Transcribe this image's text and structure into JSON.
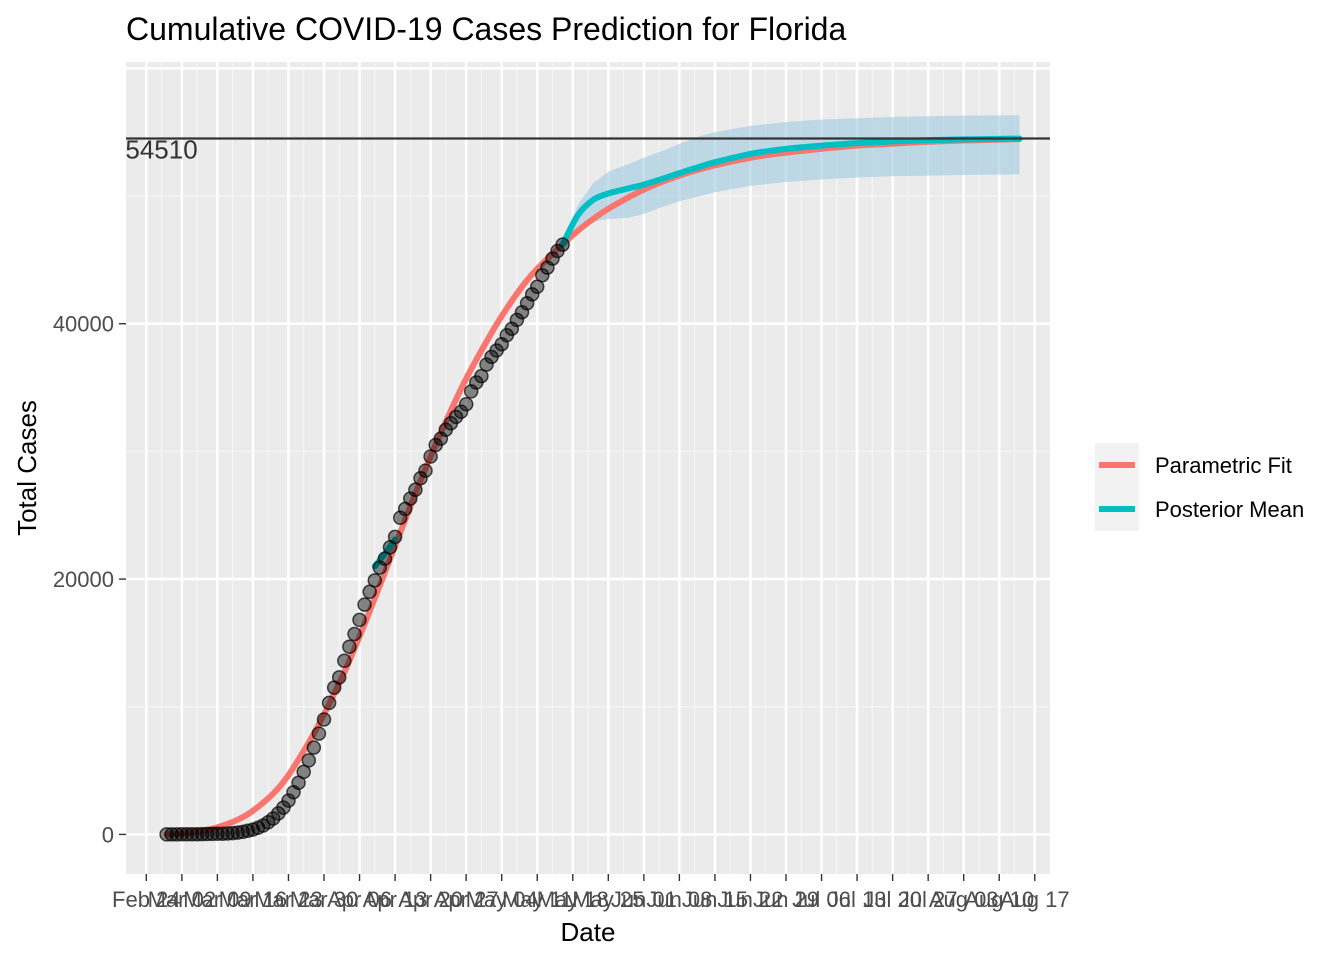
{
  "chart_data": {
    "type": "line",
    "title": "Cumulative COVID-19 Cases Prediction for Florida",
    "xlabel": "Date",
    "ylabel": "Total Cases",
    "x_range": [
      "2020-02-20",
      "2020-08-20"
    ],
    "ylim": [
      -3100,
      60500
    ],
    "y_ticks": [
      0,
      20000,
      40000
    ],
    "x_ticks": [
      {
        "date": "2020-02-24",
        "label": "Feb 24"
      },
      {
        "date": "2020-03-02",
        "label": "Mar 02"
      },
      {
        "date": "2020-03-09",
        "label": "Mar 09"
      },
      {
        "date": "2020-03-16",
        "label": "Mar 16"
      },
      {
        "date": "2020-03-23",
        "label": "Mar 23"
      },
      {
        "date": "2020-03-30",
        "label": "Mar 30"
      },
      {
        "date": "2020-04-06",
        "label": "Apr 06"
      },
      {
        "date": "2020-04-13",
        "label": "Apr 13"
      },
      {
        "date": "2020-04-20",
        "label": "Apr 20"
      },
      {
        "date": "2020-04-27",
        "label": "Apr 27"
      },
      {
        "date": "2020-05-04",
        "label": "May 04"
      },
      {
        "date": "2020-05-11",
        "label": "May 11"
      },
      {
        "date": "2020-05-18",
        "label": "May 18"
      },
      {
        "date": "2020-05-25",
        "label": "May 25"
      },
      {
        "date": "2020-06-01",
        "label": "Jun 01"
      },
      {
        "date": "2020-06-08",
        "label": "Jun 08"
      },
      {
        "date": "2020-06-15",
        "label": "Jun 15"
      },
      {
        "date": "2020-06-22",
        "label": "Jun 22"
      },
      {
        "date": "2020-06-29",
        "label": "Jun 29"
      },
      {
        "date": "2020-07-06",
        "label": "Jul 06"
      },
      {
        "date": "2020-07-13",
        "label": "Jul 13"
      },
      {
        "date": "2020-07-20",
        "label": "Jul 20"
      },
      {
        "date": "2020-07-27",
        "label": "Jul 27"
      },
      {
        "date": "2020-08-03",
        "label": "Aug 03"
      },
      {
        "date": "2020-08-10",
        "label": "Aug 10"
      },
      {
        "date": "2020-08-17",
        "label": "Aug 17"
      }
    ],
    "hline": {
      "value": 54510,
      "label": "54510",
      "label_date": "2020-02-27"
    },
    "grid": true,
    "legend": {
      "position": "right",
      "entries": [
        {
          "name": "Parametric Fit",
          "color": "#F8766D"
        },
        {
          "name": "Posterior Mean",
          "color": "#00BFC4"
        }
      ]
    },
    "observed": {
      "color": "#000000",
      "points": [
        [
          "2020-02-28",
          0
        ],
        [
          "2020-02-29",
          2
        ],
        [
          "2020-03-01",
          5
        ],
        [
          "2020-03-02",
          8
        ],
        [
          "2020-03-03",
          10
        ],
        [
          "2020-03-04",
          13
        ],
        [
          "2020-03-05",
          18
        ],
        [
          "2020-03-06",
          25
        ],
        [
          "2020-03-07",
          32
        ],
        [
          "2020-03-08",
          40
        ],
        [
          "2020-03-09",
          50
        ],
        [
          "2020-03-10",
          60
        ],
        [
          "2020-03-11",
          75
        ],
        [
          "2020-03-12",
          100
        ],
        [
          "2020-03-13",
          140
        ],
        [
          "2020-03-14",
          200
        ],
        [
          "2020-03-15",
          280
        ],
        [
          "2020-03-16",
          380
        ],
        [
          "2020-03-17",
          520
        ],
        [
          "2020-03-18",
          700
        ],
        [
          "2020-03-19",
          950
        ],
        [
          "2020-03-20",
          1250
        ],
        [
          "2020-03-21",
          1650
        ],
        [
          "2020-03-22",
          2100
        ],
        [
          "2020-03-23",
          2650
        ],
        [
          "2020-03-24",
          3300
        ],
        [
          "2020-03-25",
          4050
        ],
        [
          "2020-03-26",
          4900
        ],
        [
          "2020-03-27",
          5800
        ],
        [
          "2020-03-28",
          6800
        ],
        [
          "2020-03-29",
          7900
        ],
        [
          "2020-03-30",
          9000
        ],
        [
          "2020-03-31",
          10300
        ],
        [
          "2020-04-01",
          11500
        ],
        [
          "2020-04-02",
          12300
        ],
        [
          "2020-04-03",
          13600
        ],
        [
          "2020-04-04",
          14700
        ],
        [
          "2020-04-05",
          15700
        ],
        [
          "2020-04-06",
          16800
        ],
        [
          "2020-04-07",
          18000
        ],
        [
          "2020-04-08",
          19000
        ],
        [
          "2020-04-09",
          19900
        ],
        [
          "2020-04-10",
          20900
        ],
        [
          "2020-04-11",
          21600
        ],
        [
          "2020-04-12",
          22500
        ],
        [
          "2020-04-13",
          23300
        ],
        [
          "2020-04-14",
          24800
        ],
        [
          "2020-04-15",
          25500
        ],
        [
          "2020-04-16",
          26300
        ],
        [
          "2020-04-17",
          27000
        ],
        [
          "2020-04-18",
          27900
        ],
        [
          "2020-04-19",
          28500
        ],
        [
          "2020-04-20",
          29600
        ],
        [
          "2020-04-21",
          30500
        ],
        [
          "2020-04-22",
          31000
        ],
        [
          "2020-04-23",
          31700
        ],
        [
          "2020-04-24",
          32200
        ],
        [
          "2020-04-25",
          32700
        ],
        [
          "2020-04-26",
          33100
        ],
        [
          "2020-04-27",
          33700
        ],
        [
          "2020-04-28",
          34700
        ],
        [
          "2020-04-29",
          35400
        ],
        [
          "2020-04-30",
          35900
        ],
        [
          "2020-05-01",
          36800
        ],
        [
          "2020-05-02",
          37400
        ],
        [
          "2020-05-03",
          37900
        ],
        [
          "2020-05-04",
          38400
        ],
        [
          "2020-05-05",
          39100
        ],
        [
          "2020-05-06",
          39600
        ],
        [
          "2020-05-07",
          40300
        ],
        [
          "2020-05-08",
          40900
        ],
        [
          "2020-05-09",
          41600
        ],
        [
          "2020-05-10",
          42300
        ],
        [
          "2020-05-11",
          42900
        ],
        [
          "2020-05-12",
          43800
        ],
        [
          "2020-05-13",
          44400
        ],
        [
          "2020-05-14",
          45100
        ],
        [
          "2020-05-15",
          45700
        ],
        [
          "2020-05-16",
          46200
        ]
      ]
    },
    "series": [
      {
        "name": "Parametric Fit",
        "color": "#F8766D",
        "points": [
          [
            "2020-02-28",
            0
          ],
          [
            "2020-03-02",
            80
          ],
          [
            "2020-03-06",
            280
          ],
          [
            "2020-03-09",
            550
          ],
          [
            "2020-03-13",
            1150
          ],
          [
            "2020-03-16",
            1850
          ],
          [
            "2020-03-20",
            3200
          ],
          [
            "2020-03-23",
            4650
          ],
          [
            "2020-03-27",
            7200
          ],
          [
            "2020-03-30",
            9400
          ],
          [
            "2020-04-03",
            12700
          ],
          [
            "2020-04-06",
            15500
          ],
          [
            "2020-04-10",
            19500
          ],
          [
            "2020-04-13",
            22600
          ],
          [
            "2020-04-17",
            26700
          ],
          [
            "2020-04-20",
            29600
          ],
          [
            "2020-04-24",
            33200
          ],
          [
            "2020-04-27",
            35700
          ],
          [
            "2020-05-01",
            38600
          ],
          [
            "2020-05-04",
            40600
          ],
          [
            "2020-05-08",
            42900
          ],
          [
            "2020-05-11",
            44300
          ],
          [
            "2020-05-16",
            46200
          ],
          [
            "2020-05-20",
            47600
          ],
          [
            "2020-05-25",
            49000
          ],
          [
            "2020-06-01",
            50500
          ],
          [
            "2020-06-08",
            51600
          ],
          [
            "2020-06-15",
            52400
          ],
          [
            "2020-06-22",
            53000
          ],
          [
            "2020-06-29",
            53400
          ],
          [
            "2020-07-06",
            53700
          ],
          [
            "2020-07-13",
            53950
          ],
          [
            "2020-07-20",
            54100
          ],
          [
            "2020-07-27",
            54250
          ],
          [
            "2020-08-03",
            54350
          ],
          [
            "2020-08-10",
            54420
          ],
          [
            "2020-08-14",
            54460
          ]
        ]
      },
      {
        "name": "Posterior Mean",
        "color": "#00BFC4",
        "points": [
          [
            "2020-04-09",
            21000
          ],
          [
            "2020-04-11",
            22000
          ],
          [
            "2020-04-13",
            23100
          ],
          [
            "2020-05-16",
            46200
          ],
          [
            "2020-05-19",
            48500
          ],
          [
            "2020-05-22",
            49700
          ],
          [
            "2020-05-25",
            50200
          ],
          [
            "2020-05-29",
            50600
          ],
          [
            "2020-06-01",
            50900
          ],
          [
            "2020-06-05",
            51400
          ],
          [
            "2020-06-08",
            51800
          ],
          [
            "2020-06-12",
            52300
          ],
          [
            "2020-06-15",
            52650
          ],
          [
            "2020-06-22",
            53300
          ],
          [
            "2020-06-29",
            53700
          ],
          [
            "2020-07-06",
            53950
          ],
          [
            "2020-07-13",
            54150
          ],
          [
            "2020-07-20",
            54280
          ],
          [
            "2020-07-27",
            54380
          ],
          [
            "2020-08-03",
            54440
          ],
          [
            "2020-08-10",
            54480
          ],
          [
            "2020-08-14",
            54500
          ]
        ]
      }
    ],
    "credible_band": {
      "color": "#9ECAE1",
      "points": [
        [
          "2020-05-16",
          46200,
          46200
        ],
        [
          "2020-05-19",
          47500,
          49300
        ],
        [
          "2020-05-22",
          48000,
          51000
        ],
        [
          "2020-05-25",
          48200,
          51900
        ],
        [
          "2020-05-29",
          48300,
          52500
        ],
        [
          "2020-06-01",
          48600,
          53000
        ],
        [
          "2020-06-05",
          49200,
          53600
        ],
        [
          "2020-06-08",
          49600,
          54100
        ],
        [
          "2020-06-12",
          50000,
          54700
        ],
        [
          "2020-06-15",
          50300,
          55000
        ],
        [
          "2020-06-22",
          50800,
          55500
        ],
        [
          "2020-06-29",
          51100,
          55800
        ],
        [
          "2020-07-06",
          51300,
          56000
        ],
        [
          "2020-07-13",
          51450,
          56100
        ],
        [
          "2020-07-20",
          51550,
          56200
        ],
        [
          "2020-07-27",
          51600,
          56250
        ],
        [
          "2020-08-03",
          51650,
          56300
        ],
        [
          "2020-08-10",
          51680,
          56320
        ],
        [
          "2020-08-14",
          51700,
          56330
        ]
      ]
    }
  }
}
